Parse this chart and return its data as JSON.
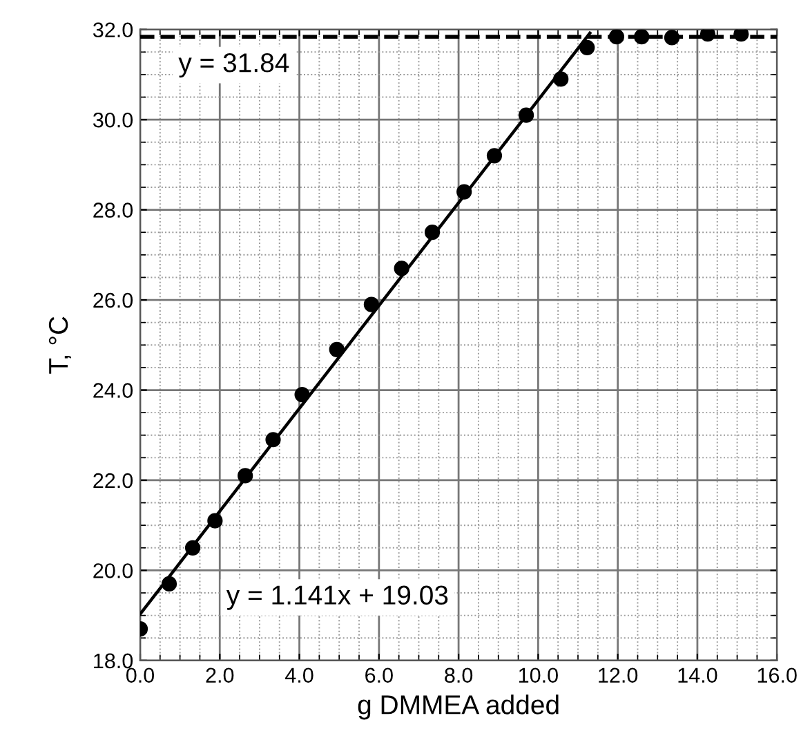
{
  "chart_data": {
    "type": "scatter",
    "xlabel": "g DMMEA added",
    "ylabel": "T, °C",
    "xlim": [
      0,
      16
    ],
    "ylim": [
      18,
      32
    ],
    "xticks": [
      {
        "value": 0,
        "label": "0.0"
      },
      {
        "value": 2,
        "label": "2.0"
      },
      {
        "value": 4,
        "label": "4.0"
      },
      {
        "value": 6,
        "label": "6.0"
      },
      {
        "value": 8,
        "label": "8.0"
      },
      {
        "value": 10,
        "label": "10.0"
      },
      {
        "value": 12,
        "label": "12.0"
      },
      {
        "value": 14,
        "label": "14.0"
      },
      {
        "value": 16,
        "label": "16.0"
      }
    ],
    "yticks": [
      {
        "value": 18,
        "label": "18.0"
      },
      {
        "value": 20,
        "label": "20.0"
      },
      {
        "value": 22,
        "label": "22.0"
      },
      {
        "value": 24,
        "label": "24.0"
      },
      {
        "value": 26,
        "label": "26.0"
      },
      {
        "value": 28,
        "label": "28.0"
      },
      {
        "value": 30,
        "label": "30.0"
      },
      {
        "value": 32,
        "label": "32.0"
      }
    ],
    "grid": true,
    "series": [
      {
        "marker": "circle",
        "color": "#000000",
        "x": [
          0,
          0.73,
          1.32,
          1.88,
          2.64,
          3.34,
          4.07,
          4.94,
          5.81,
          6.57,
          7.34,
          8.14,
          8.9,
          9.7,
          10.57,
          11.23,
          11.97,
          12.6,
          13.36,
          14.26,
          15.1
        ],
        "values": [
          18.7,
          19.7,
          20.5,
          21.1,
          22.1,
          22.9,
          23.9,
          24.9,
          25.9,
          26.7,
          27.5,
          28.4,
          29.2,
          30.1,
          30.9,
          31.6,
          31.84,
          31.84,
          31.82,
          31.9,
          31.9
        ]
      },
      {
        "type": "line",
        "color": "#000000",
        "line_style": "solid",
        "x": [
          0,
          11.3
        ],
        "values": [
          19.03,
          31.92
        ]
      }
    ],
    "ref_lines": [
      {
        "axis": "y",
        "value": 31.84,
        "label": "y = 31.84",
        "color": "#000000",
        "line_style": "dashed"
      }
    ],
    "annotations": [
      "y = 1.141x + 19.03"
    ]
  }
}
